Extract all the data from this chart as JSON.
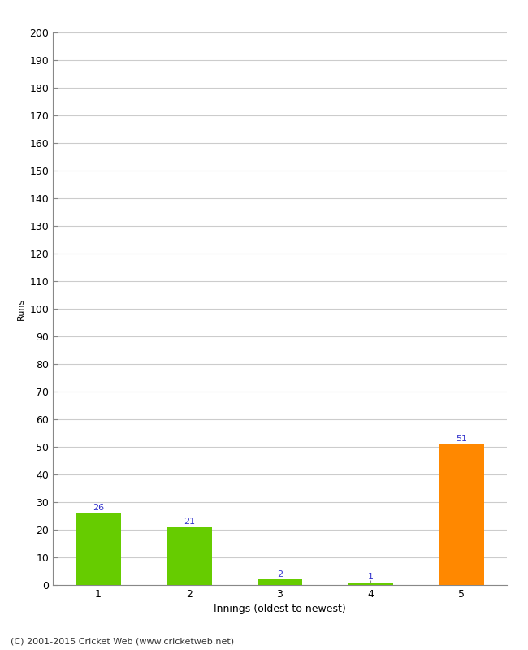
{
  "categories": [
    "1",
    "2",
    "3",
    "4",
    "5"
  ],
  "values": [
    26,
    21,
    2,
    1,
    51
  ],
  "bar_colors": [
    "#66cc00",
    "#66cc00",
    "#66cc00",
    "#66cc00",
    "#ff8800"
  ],
  "xlabel": "Innings (oldest to newest)",
  "ylabel": "Runs",
  "ylim": [
    0,
    200
  ],
  "yticks": [
    0,
    10,
    20,
    30,
    40,
    50,
    60,
    70,
    80,
    90,
    100,
    110,
    120,
    130,
    140,
    150,
    160,
    170,
    180,
    190,
    200
  ],
  "label_color": "#3333cc",
  "label_fontsize": 8,
  "tick_fontsize": 9,
  "xlabel_fontsize": 9,
  "ylabel_fontsize": 8,
  "footer": "(C) 2001-2015 Cricket Web (www.cricketweb.net)",
  "footer_fontsize": 8,
  "background_color": "#ffffff",
  "grid_color": "#cccccc",
  "bar_width": 0.5,
  "spine_color": "#888888"
}
